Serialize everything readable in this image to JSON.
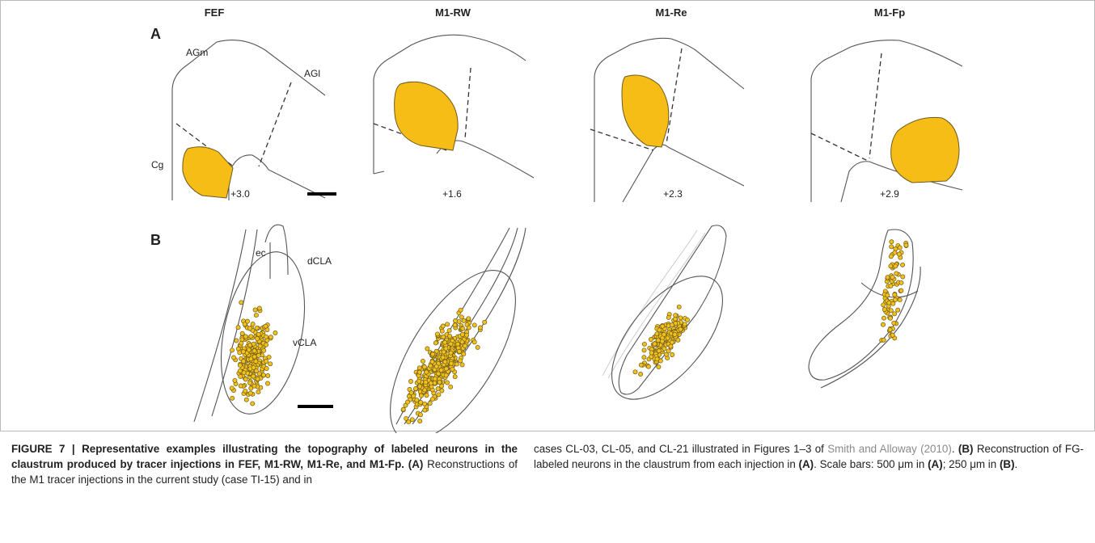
{
  "figure": {
    "panel_labels": [
      "A",
      "B"
    ],
    "panel_a": {
      "columns": [
        {
          "title": "FEF",
          "level": "+3.0"
        },
        {
          "title": "M1-RW",
          "level": "+1.6"
        },
        {
          "title": "M1-Re",
          "level": "+2.3"
        },
        {
          "title": "M1-Fp",
          "level": "+2.9"
        }
      ],
      "region_labels": [
        "AGm",
        "AGl",
        "Cg"
      ]
    },
    "panel_b": {
      "region_labels": [
        "ec",
        "dCLA",
        "vCLA"
      ]
    },
    "caption": {
      "left": [
        "FIGURE 7 | Representative examples illustrating the topography of labeled neurons in the claustrum produced by tracer injections in FEF, M1-RW, M1-Re, and M1-Fp.",
        "(A)",
        "Reconstructions of the M1 tracer injections in the current study (case TI-15) and in"
      ],
      "right": [
        "cases CL-03, CL-05, and CL-21 illustrated in Figures 1–3 of",
        "Smith and Alloway (2010)",
        ".",
        "(B)",
        "Reconstruction of FG-labeled neurons in the claustrum from each injection in",
        "(A)",
        ". Scale bars: 500 μm in",
        "(A)",
        "; 250 μm in",
        "(B)",
        "."
      ]
    }
  }
}
